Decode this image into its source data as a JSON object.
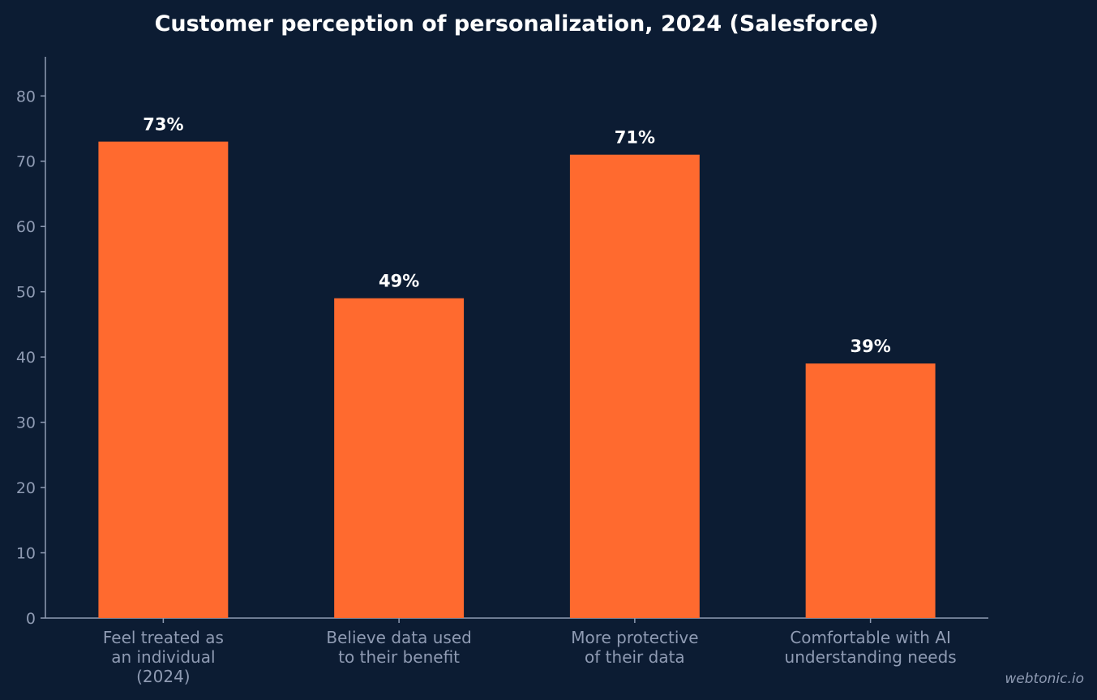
{
  "chart_data": {
    "type": "bar",
    "title": "Customer perception of personalization, 2024 (Salesforce)",
    "xlabel": "",
    "ylabel": "",
    "categories": [
      [
        "Feel treated as",
        "an individual",
        "(2024)"
      ],
      [
        "Believe data used",
        "to their benefit"
      ],
      [
        "More protective",
        "of their data"
      ],
      [
        "Comfortable with AI",
        "understanding needs"
      ]
    ],
    "values": [
      73,
      49,
      71,
      39
    ],
    "data_labels": [
      "73%",
      "49%",
      "71%",
      "39%"
    ],
    "ylim": [
      0,
      86
    ],
    "yticks": [
      0,
      10,
      20,
      30,
      40,
      50,
      60,
      70,
      80
    ],
    "grid": false,
    "bar_color": "#ff6a2f",
    "background": "#0c1c33"
  },
  "watermark": "webtonic.io"
}
